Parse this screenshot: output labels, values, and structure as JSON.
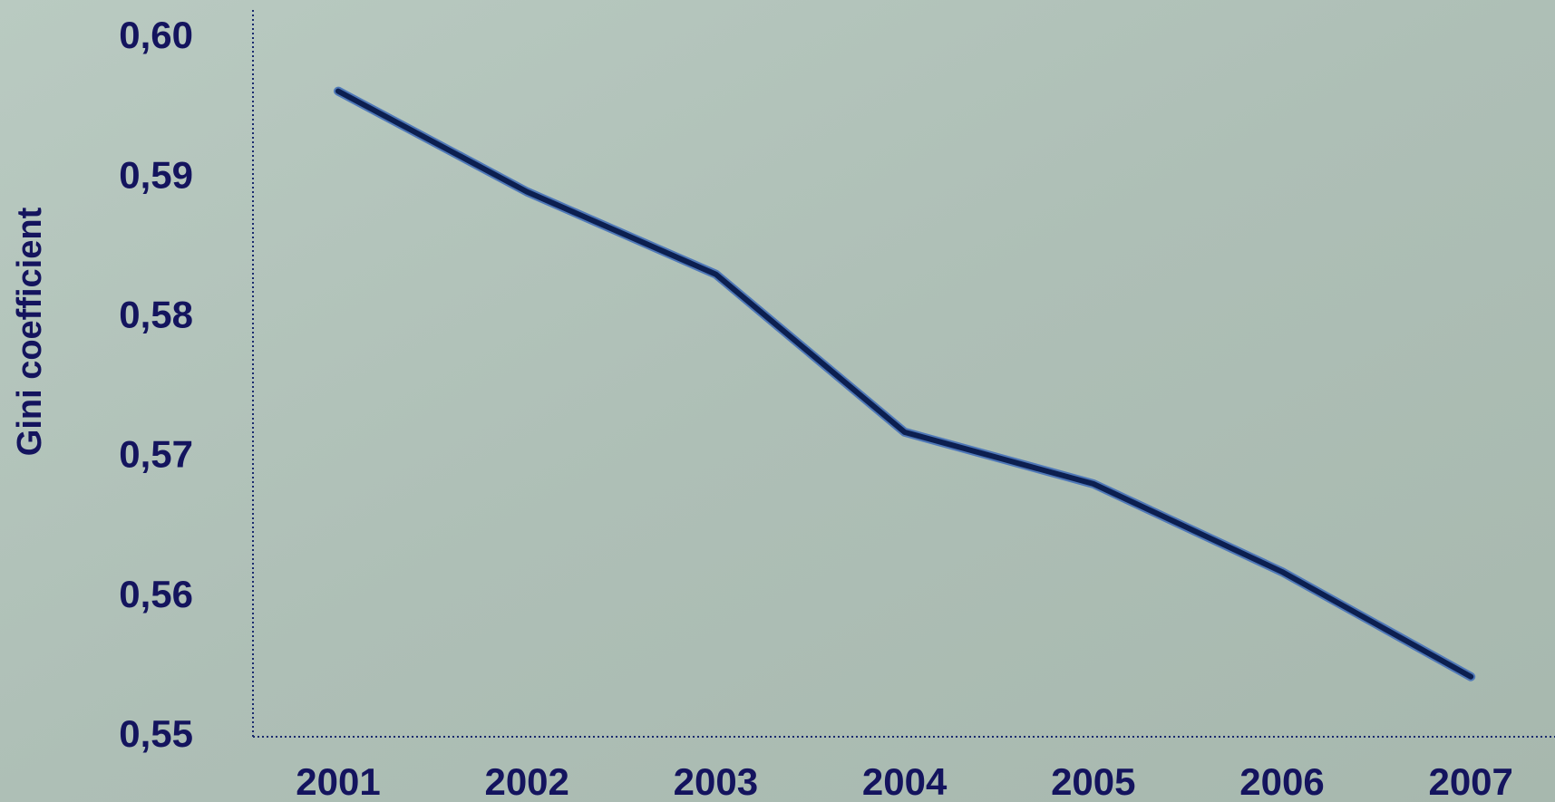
{
  "chart_data": {
    "type": "line",
    "y_label": "Gini coefficient",
    "categories": [
      "2001",
      "2002",
      "2003",
      "2004",
      "2005",
      "2006",
      "2007"
    ],
    "series": [
      {
        "name": "Gini coefficient",
        "color": "#0c1f50",
        "values": [
          0.5962,
          0.589,
          0.5831,
          0.5718,
          0.5681,
          0.5618,
          0.5543
        ]
      }
    ],
    "ylim": [
      0.55,
      0.6
    ],
    "yticks": [
      {
        "value": 0.55,
        "label": "0,55"
      },
      {
        "value": 0.56,
        "label": "0,56"
      },
      {
        "value": 0.57,
        "label": "0,57"
      },
      {
        "value": 0.58,
        "label": "0,58"
      },
      {
        "value": 0.59,
        "label": "0,59"
      },
      {
        "value": 0.6,
        "label": "0,60"
      }
    ],
    "grid": false
  }
}
